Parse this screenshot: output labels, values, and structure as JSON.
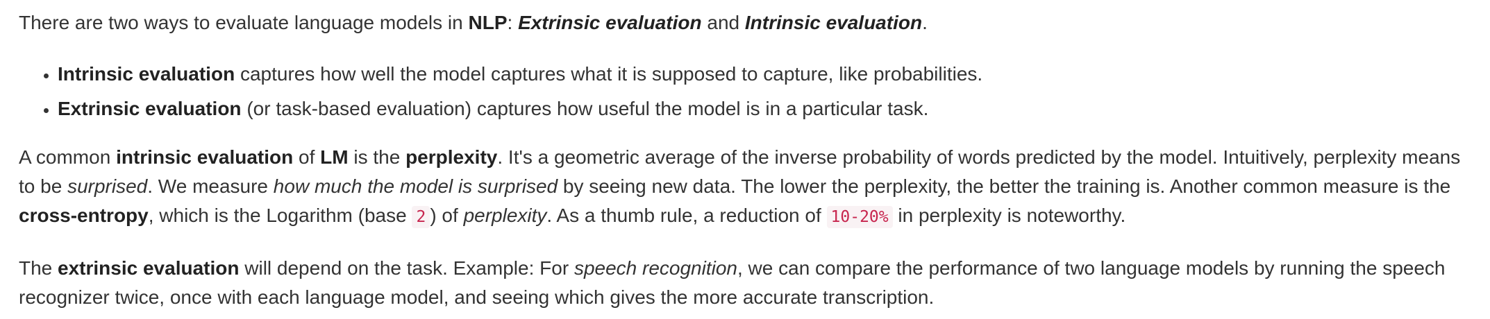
{
  "intro": {
    "t1": "There are two ways to evaluate language models in ",
    "nlp": "NLP",
    "t2": ": ",
    "extrinsic": "Extrinsic evaluation",
    "t3": " and ",
    "intrinsic": "Intrinsic evaluation",
    "t4": "."
  },
  "bullets": [
    {
      "term": "Intrinsic evaluation",
      "text": " captures how well the model captures what it is supposed to capture, like probabilities."
    },
    {
      "term": "Extrinsic evaluation",
      "text": " (or task-based evaluation) captures how useful the model is in a particular task."
    }
  ],
  "intrinsic_para": {
    "t1": "A common ",
    "b1": "intrinsic evaluation",
    "t2": " of ",
    "b2": "LM",
    "t3": " is the ",
    "b3": "perplexity",
    "t4": ". It's a geometric average of the inverse probability of words predicted by the model. Intuitively, perplexity means to be ",
    "i1": "surprised",
    "t5": ". We measure ",
    "i2": "how much the model is surprised",
    "t6": " by seeing new data. The lower the perplexity, the better the training is. Another common measure is the ",
    "b4": "cross-entropy",
    "t7": ", which is the Logarithm (base ",
    "code1": "2",
    "t8": ") of ",
    "i3": "perplexity",
    "t9": ". As a thumb rule, a reduction of ",
    "code2": "10-20%",
    "t10": " in perplexity is noteworthy."
  },
  "extrinsic_para": {
    "t1": "The ",
    "b1": "extrinsic evaluation",
    "t2": " will depend on the task. Example: For ",
    "i1": "speech recognition",
    "t3": ", we can compare the performance of two language models by running the speech recognizer twice, once with each language model, and seeing which gives the more accurate transcription."
  }
}
